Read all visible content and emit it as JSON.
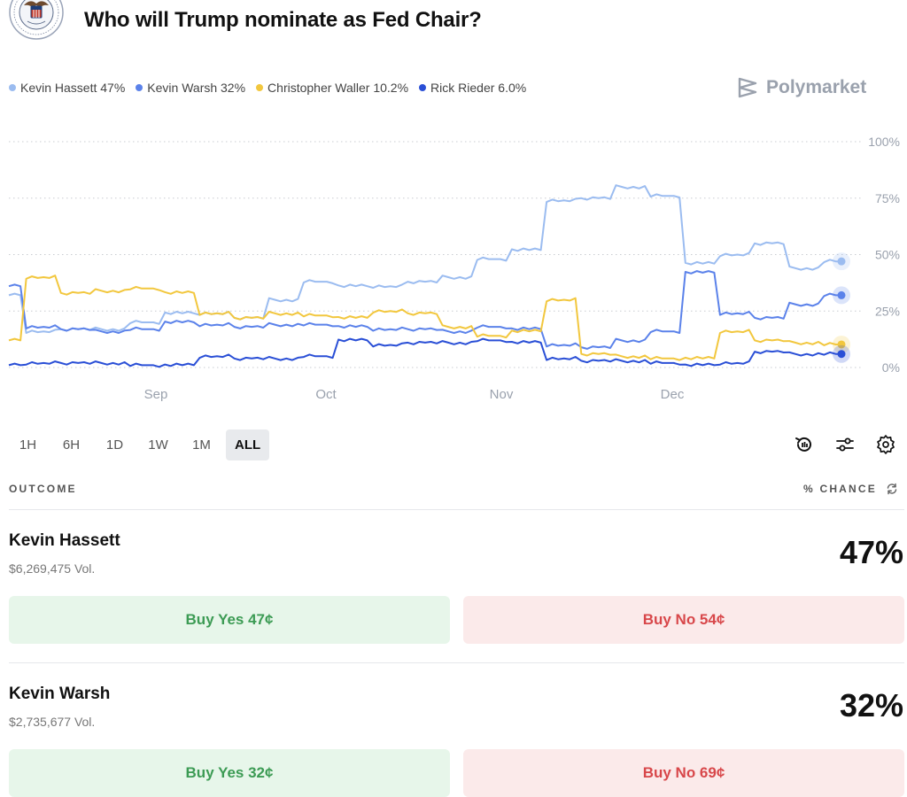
{
  "page": {
    "title": "Who will Trump nominate as Fed Chair?",
    "brand": "Polymarket"
  },
  "legend": [
    {
      "label": "Kevin Hassett 47%",
      "color": "#9bbcf0"
    },
    {
      "label": "Kevin Warsh 32%",
      "color": "#5b82ea"
    },
    {
      "label": "Christopher Waller 10.2%",
      "color": "#f2c73e"
    },
    {
      "label": "Rick Rieder 6.0%",
      "color": "#2a4fd6"
    }
  ],
  "chart_data": {
    "type": "line",
    "x_tick_labels": [
      "Sep",
      "Oct",
      "Nov",
      "Dec"
    ],
    "y_tick_labels": [
      "100%",
      "75%",
      "50%",
      "25%",
      "0%"
    ],
    "ylim": [
      0,
      100
    ],
    "grid": true,
    "legend_position": "top-left",
    "series": [
      {
        "name": "Kevin Hassett",
        "color": "#9bbcf0",
        "values": [
          32,
          16,
          17,
          17,
          20,
          24,
          24,
          22,
          30,
          38,
          36,
          36,
          38,
          40,
          48,
          52,
          74,
          75,
          80,
          76,
          46,
          50,
          55,
          44,
          47
        ]
      },
      {
        "name": "Kevin Warsh",
        "color": "#5b82ea",
        "values": [
          36,
          18,
          17,
          16,
          17,
          20,
          19,
          18,
          19,
          19,
          18,
          17,
          17,
          16,
          18,
          17,
          10,
          9,
          12,
          16,
          42,
          24,
          22,
          28,
          32
        ]
      },
      {
        "name": "Christopher Waller",
        "color": "#f2c73e",
        "values": [
          12,
          40,
          33,
          34,
          35,
          33,
          24,
          22,
          24,
          23,
          22,
          25,
          24,
          18,
          14,
          16,
          30,
          6,
          5,
          4,
          4,
          16,
          12,
          11,
          10.2
        ]
      },
      {
        "name": "Rick Rieder",
        "color": "#2a4fd6",
        "values": [
          1,
          2,
          2,
          2,
          1,
          1,
          5,
          4,
          4,
          5,
          12,
          10,
          11,
          11,
          12,
          11,
          4,
          3,
          3,
          2,
          1,
          2,
          7,
          6,
          6
        ]
      }
    ]
  },
  "ranges": [
    "1H",
    "6H",
    "1D",
    "1W",
    "1M",
    "ALL"
  ],
  "active_range": "ALL",
  "table": {
    "outcome_header": "OUTCOME",
    "chance_header": "% CHANCE"
  },
  "outcomes": [
    {
      "name": "Kevin Hassett",
      "volume": "$6,269,475 Vol.",
      "chance": "47%",
      "yes_label": "Buy Yes 47¢",
      "no_label": "Buy No 54¢"
    },
    {
      "name": "Kevin Warsh",
      "volume": "$2,735,677 Vol.",
      "chance": "32%",
      "yes_label": "Buy Yes 32¢",
      "no_label": "Buy No 69¢"
    }
  ]
}
